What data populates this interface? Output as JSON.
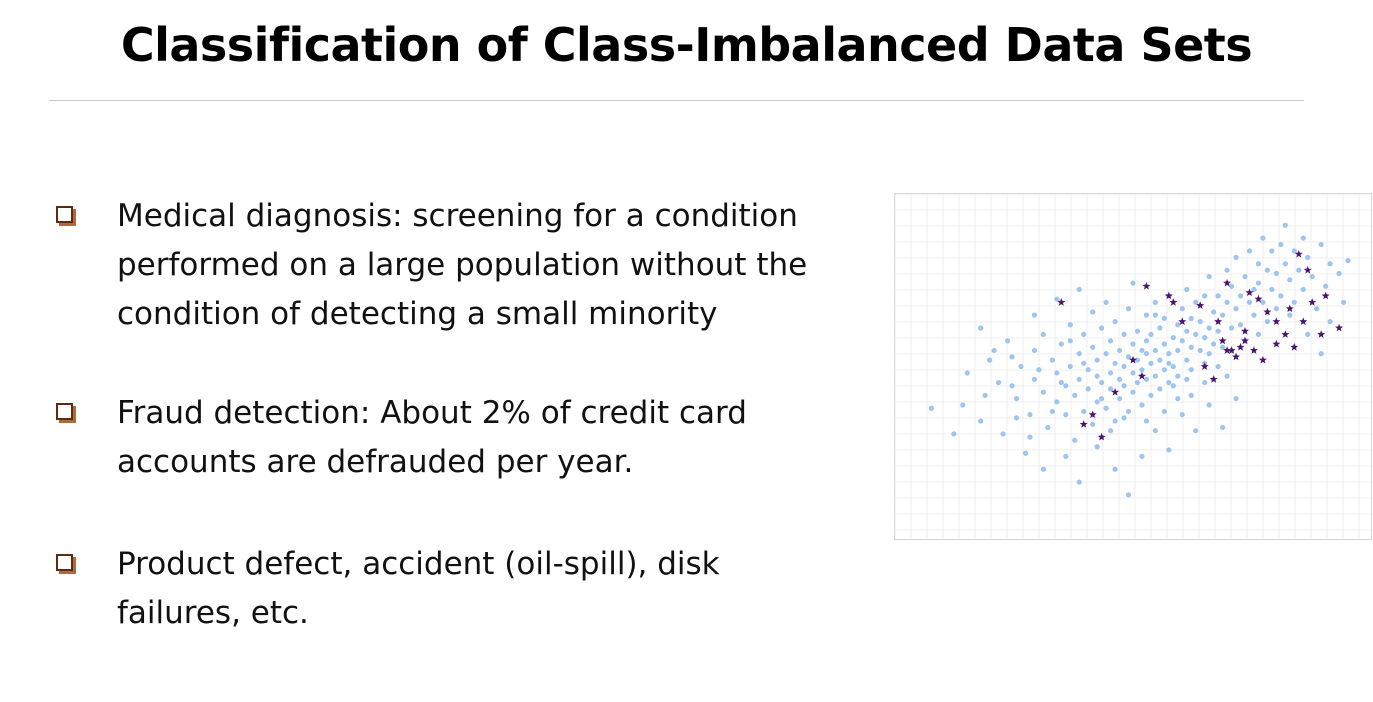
{
  "slide": {
    "title": "Classification of Class-Imbalanced Data Sets"
  },
  "bullets": [
    {
      "lines": [
        "Medical diagnosis: screening for a condition",
        "performed on a large population without the",
        "condition of detecting a small minority"
      ]
    },
    {
      "lines": [
        "Fraud detection: About 2% of credit card",
        "accounts are defrauded per year."
      ]
    },
    {
      "lines": [
        "Product defect, accident (oil-spill), disk",
        "failures, etc."
      ]
    }
  ],
  "colors": {
    "bullet_border": "#5e2a10",
    "bullet_shadow": "#b06a3a",
    "majority_point": "#9ec4f0",
    "minority_point": "#4a1470",
    "grid": "#efefef"
  },
  "chart_data": {
    "type": "scatter",
    "title": "",
    "xlabel": "",
    "ylabel": "",
    "grid": true,
    "xlim": [
      0,
      100
    ],
    "ylim": [
      0,
      100
    ],
    "series": [
      {
        "marker": "circle",
        "color": "#9ec4f0",
        "points": [
          [
            5,
            37
          ],
          [
            13,
            48
          ],
          [
            18,
            52
          ],
          [
            16,
            33
          ],
          [
            16,
            62
          ],
          [
            12,
            38
          ],
          [
            22,
            58
          ],
          [
            23,
            44
          ],
          [
            21,
            29
          ],
          [
            24,
            40
          ],
          [
            25,
            50
          ],
          [
            27,
            35
          ],
          [
            28,
            55
          ],
          [
            28,
            46
          ],
          [
            30,
            42
          ],
          [
            30,
            60
          ],
          [
            31,
            31
          ],
          [
            32,
            52
          ],
          [
            33,
            39
          ],
          [
            33,
            48
          ],
          [
            34,
            57
          ],
          [
            35,
            44
          ],
          [
            35,
            35
          ],
          [
            36,
            63
          ],
          [
            36,
            50
          ],
          [
            37,
            41
          ],
          [
            37,
            27
          ],
          [
            38,
            54
          ],
          [
            38,
            46
          ],
          [
            39,
            36
          ],
          [
            39,
            60
          ],
          [
            40,
            49
          ],
          [
            40,
            43
          ],
          [
            41,
            56
          ],
          [
            41,
            32
          ],
          [
            42,
            47
          ],
          [
            42,
            52
          ],
          [
            42,
            39
          ],
          [
            43,
            62
          ],
          [
            43,
            45
          ],
          [
            44,
            54
          ],
          [
            44,
            37
          ],
          [
            45,
            48
          ],
          [
            45,
            58
          ],
          [
            45,
            43
          ],
          [
            46,
            51
          ],
          [
            46,
            33
          ],
          [
            46,
            64
          ],
          [
            47,
            46
          ],
          [
            47,
            55
          ],
          [
            47,
            40
          ],
          [
            48,
            50
          ],
          [
            48,
            60
          ],
          [
            48,
            44
          ],
          [
            49,
            53
          ],
          [
            49,
            36
          ],
          [
            49,
            68
          ],
          [
            50,
            48
          ],
          [
            50,
            57
          ],
          [
            50,
            42
          ],
          [
            51,
            52
          ],
          [
            51,
            61
          ],
          [
            51,
            45
          ],
          [
            52,
            55
          ],
          [
            52,
            38
          ],
          [
            52,
            49
          ],
          [
            53,
            58
          ],
          [
            53,
            46
          ],
          [
            53,
            66
          ],
          [
            54,
            51
          ],
          [
            54,
            41
          ],
          [
            54,
            60
          ],
          [
            55,
            55
          ],
          [
            55,
            47
          ],
          [
            55,
            70
          ],
          [
            56,
            52
          ],
          [
            56,
            62
          ],
          [
            56,
            43
          ],
          [
            57,
            57
          ],
          [
            57,
            49
          ],
          [
            57,
            65
          ],
          [
            58,
            54
          ],
          [
            58,
            45
          ],
          [
            58,
            72
          ],
          [
            59,
            59
          ],
          [
            59,
            50
          ],
          [
            60,
            55
          ],
          [
            60,
            63
          ],
          [
            60,
            47
          ],
          [
            61,
            58
          ],
          [
            61,
            68
          ],
          [
            62,
            52
          ],
          [
            62,
            61
          ],
          [
            62,
            74
          ],
          [
            63,
            56
          ],
          [
            63,
            65
          ],
          [
            63,
            49
          ],
          [
            64,
            60
          ],
          [
            64,
            70
          ],
          [
            65,
            55
          ],
          [
            65,
            64
          ],
          [
            66,
            59
          ],
          [
            66,
            72
          ],
          [
            66,
            51
          ],
          [
            67,
            62
          ],
          [
            67,
            78
          ],
          [
            68,
            57
          ],
          [
            68,
            67
          ],
          [
            69,
            61
          ],
          [
            69,
            72
          ],
          [
            70,
            66
          ],
          [
            70,
            56
          ],
          [
            71,
            70
          ],
          [
            71,
            80
          ],
          [
            72,
            62
          ],
          [
            72,
            75
          ],
          [
            73,
            68
          ],
          [
            73,
            84
          ],
          [
            74,
            72
          ],
          [
            74,
            63
          ],
          [
            75,
            78
          ],
          [
            76,
            70
          ],
          [
            76,
            86
          ],
          [
            77,
            74
          ],
          [
            77,
            66
          ],
          [
            78,
            82
          ],
          [
            78,
            76
          ],
          [
            79,
            70
          ],
          [
            79,
            90
          ],
          [
            80,
            80
          ],
          [
            81,
            74
          ],
          [
            81,
            86
          ],
          [
            82,
            79
          ],
          [
            83,
            72
          ],
          [
            83,
            88
          ],
          [
            84,
            82
          ],
          [
            84,
            94
          ],
          [
            85,
            77
          ],
          [
            86,
            86
          ],
          [
            86,
            70
          ],
          [
            87,
            80
          ],
          [
            88,
            74
          ],
          [
            88,
            90
          ],
          [
            89,
            84
          ],
          [
            90,
            78
          ],
          [
            91,
            68
          ],
          [
            92,
            88
          ],
          [
            93,
            75
          ],
          [
            94,
            82
          ],
          [
            96,
            79
          ],
          [
            26,
            23
          ],
          [
            30,
            18
          ],
          [
            35,
            22
          ],
          [
            38,
            14
          ],
          [
            42,
            25
          ],
          [
            46,
            18
          ],
          [
            49,
            10
          ],
          [
            52,
            22
          ],
          [
            55,
            30
          ],
          [
            58,
            24
          ],
          [
            61,
            35
          ],
          [
            64,
            30
          ],
          [
            67,
            38
          ],
          [
            70,
            31
          ],
          [
            73,
            40
          ],
          [
            28,
            66
          ],
          [
            33,
            71
          ],
          [
            38,
            74
          ],
          [
            44,
            70
          ],
          [
            50,
            76
          ],
          [
            55,
            66
          ],
          [
            60,
            40
          ],
          [
            20,
            45
          ],
          [
            23,
            53
          ],
          [
            27,
            28
          ],
          [
            32,
            36
          ],
          [
            36,
            58
          ],
          [
            41,
            67
          ],
          [
            45,
            30
          ],
          [
            53,
            33
          ],
          [
            57,
            36
          ],
          [
            59,
            44
          ],
          [
            63,
            41
          ],
          [
            66,
            45
          ],
          [
            69,
            50
          ],
          [
            72,
            55
          ],
          [
            75,
            58
          ],
          [
            78,
            60
          ],
          [
            80,
            64
          ],
          [
            82,
            68
          ],
          [
            85,
            66
          ],
          [
            89,
            60
          ],
          [
            92,
            54
          ],
          [
            94,
            64
          ],
          [
            97,
            70
          ],
          [
            98,
            83
          ],
          [
            10,
            29
          ],
          [
            17,
            41
          ],
          [
            19,
            55
          ],
          [
            24,
            34
          ],
          [
            29,
            49
          ],
          [
            34,
            45
          ],
          [
            39,
            51
          ],
          [
            43,
            40
          ],
          [
            48,
            34
          ],
          [
            53,
            54
          ],
          [
            58,
            51
          ],
          [
            62,
            46
          ],
          [
            67,
            54
          ],
          [
            71,
            47
          ]
        ]
      },
      {
        "marker": "star",
        "color": "#4a1470",
        "points": [
          [
            34,
            70
          ],
          [
            53,
            75
          ],
          [
            58,
            72
          ],
          [
            61,
            64
          ],
          [
            65,
            69
          ],
          [
            69,
            64
          ],
          [
            70,
            58
          ],
          [
            71,
            55
          ],
          [
            72,
            55
          ],
          [
            73,
            53
          ],
          [
            74,
            56
          ],
          [
            75,
            58
          ],
          [
            68,
            46
          ],
          [
            66,
            50
          ],
          [
            75,
            61
          ],
          [
            77,
            55
          ],
          [
            79,
            52
          ],
          [
            82,
            57
          ],
          [
            84,
            60
          ],
          [
            86,
            56
          ],
          [
            85,
            68
          ],
          [
            88,
            64
          ],
          [
            90,
            70
          ],
          [
            92,
            60
          ],
          [
            93,
            72
          ],
          [
            96,
            62
          ],
          [
            89,
            80
          ],
          [
            87,
            85
          ],
          [
            76,
            73
          ],
          [
            78,
            71
          ],
          [
            80,
            67
          ],
          [
            82,
            64
          ],
          [
            50,
            52
          ],
          [
            52,
            47
          ],
          [
            41,
            35
          ],
          [
            43,
            28
          ],
          [
            39,
            32
          ],
          [
            46,
            42
          ],
          [
            59,
            70
          ],
          [
            71,
            76
          ]
        ]
      }
    ]
  }
}
